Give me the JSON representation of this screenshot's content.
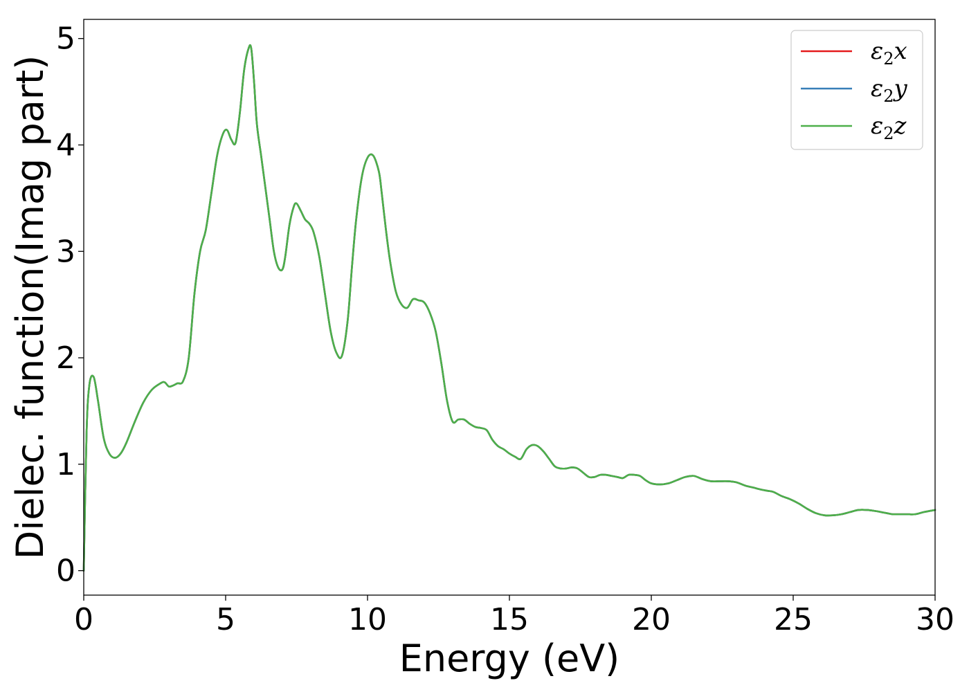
{
  "chart_data": {
    "type": "line",
    "title": "",
    "xlabel": "Energy (eV)",
    "ylabel": "Dielec. function(Imag part)",
    "xlim": [
      0,
      30
    ],
    "ylim": [
      -0.23,
      5.18
    ],
    "xticks": [
      0,
      5,
      10,
      15,
      20,
      25,
      30
    ],
    "yticks": [
      0,
      1,
      2,
      3,
      4,
      5
    ],
    "grid": false,
    "legend_position": "top-right",
    "series": [
      {
        "name": "ε₂x",
        "legend_base": "ε",
        "legend_sub": "2",
        "legend_tail": "x",
        "color": "#e41a1c"
      },
      {
        "name": "ε₂y",
        "legend_base": "ε",
        "legend_sub": "2",
        "legend_tail": "y",
        "color": "#377eb8"
      },
      {
        "name": "ε₂z",
        "legend_base": "ε",
        "legend_sub": "2",
        "legend_tail": "z",
        "color": "#4daf4a"
      }
    ],
    "x": [
      0,
      0.1,
      0.2,
      0.35,
      0.5,
      0.7,
      0.9,
      1.1,
      1.3,
      1.5,
      1.8,
      2.1,
      2.4,
      2.7,
      2.85,
      3.0,
      3.15,
      3.3,
      3.5,
      3.7,
      3.9,
      4.1,
      4.3,
      4.5,
      4.7,
      4.9,
      5.05,
      5.2,
      5.35,
      5.5,
      5.65,
      5.8,
      5.9,
      6.0,
      6.1,
      6.25,
      6.4,
      6.55,
      6.7,
      6.85,
      7.0,
      7.1,
      7.25,
      7.4,
      7.5,
      7.65,
      7.8,
      7.95,
      8.1,
      8.3,
      8.5,
      8.7,
      8.9,
      9.1,
      9.3,
      9.45,
      9.6,
      9.8,
      10.0,
      10.2,
      10.4,
      10.5,
      10.65,
      10.8,
      11.0,
      11.2,
      11.4,
      11.6,
      11.8,
      12.0,
      12.2,
      12.4,
      12.6,
      12.8,
      13.0,
      13.2,
      13.4,
      13.6,
      13.8,
      14.0,
      14.2,
      14.4,
      14.6,
      14.8,
      15.0,
      15.2,
      15.4,
      15.6,
      15.8,
      16.0,
      16.2,
      16.4,
      16.6,
      16.8,
      17.0,
      17.2,
      17.4,
      17.6,
      17.8,
      18.0,
      18.2,
      18.4,
      18.6,
      18.8,
      19.0,
      19.2,
      19.4,
      19.6,
      19.8,
      20.0,
      20.3,
      20.6,
      20.9,
      21.2,
      21.5,
      21.8,
      22.1,
      22.4,
      22.7,
      23.0,
      23.3,
      23.6,
      23.9,
      24.1,
      24.3,
      24.6,
      24.9,
      25.2,
      25.5,
      25.8,
      26.1,
      26.4,
      26.7,
      27.0,
      27.3,
      27.6,
      27.9,
      28.1,
      28.3,
      28.5,
      28.7,
      29.0,
      29.3,
      29.6,
      30.0
    ],
    "y": [
      0.0,
      1.3,
      1.75,
      1.82,
      1.6,
      1.25,
      1.1,
      1.06,
      1.1,
      1.2,
      1.4,
      1.58,
      1.7,
      1.76,
      1.77,
      1.73,
      1.74,
      1.76,
      1.78,
      2.0,
      2.6,
      3.0,
      3.2,
      3.55,
      3.9,
      4.1,
      4.14,
      4.05,
      4.02,
      4.3,
      4.7,
      4.9,
      4.91,
      4.6,
      4.2,
      3.9,
      3.6,
      3.3,
      3.0,
      2.85,
      2.83,
      2.95,
      3.25,
      3.42,
      3.45,
      3.38,
      3.3,
      3.26,
      3.18,
      2.95,
      2.6,
      2.25,
      2.05,
      2.02,
      2.35,
      2.85,
      3.3,
      3.7,
      3.88,
      3.9,
      3.75,
      3.55,
      3.2,
      2.9,
      2.62,
      2.5,
      2.47,
      2.55,
      2.54,
      2.52,
      2.42,
      2.25,
      1.95,
      1.6,
      1.4,
      1.42,
      1.42,
      1.38,
      1.35,
      1.34,
      1.32,
      1.23,
      1.17,
      1.14,
      1.1,
      1.07,
      1.05,
      1.14,
      1.18,
      1.17,
      1.12,
      1.05,
      0.98,
      0.96,
      0.96,
      0.97,
      0.96,
      0.92,
      0.88,
      0.88,
      0.9,
      0.9,
      0.89,
      0.88,
      0.87,
      0.9,
      0.9,
      0.89,
      0.85,
      0.82,
      0.81,
      0.82,
      0.85,
      0.88,
      0.89,
      0.86,
      0.84,
      0.84,
      0.84,
      0.83,
      0.8,
      0.78,
      0.76,
      0.75,
      0.74,
      0.7,
      0.67,
      0.63,
      0.58,
      0.54,
      0.52,
      0.52,
      0.53,
      0.55,
      0.57,
      0.57,
      0.56,
      0.55,
      0.54,
      0.53,
      0.53,
      0.53,
      0.53,
      0.55,
      0.57
    ]
  }
}
